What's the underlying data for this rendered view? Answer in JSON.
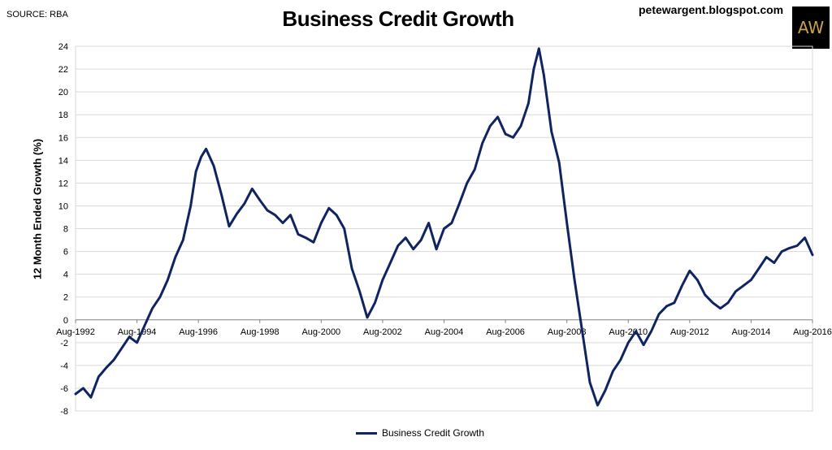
{
  "source": "SOURCE: RBA",
  "blog": "petewargent.blogspot.com",
  "logo_text": "AW",
  "colors": {
    "line": "#0f2460",
    "grid": "#d9d9d9",
    "axis": "#808080"
  },
  "chart_data": {
    "type": "line",
    "title": "Business Credit Growth",
    "ylabel": "12 Month Ended Growth (%)",
    "xlabel": "",
    "ylim": [
      -8,
      24
    ],
    "yticks": [
      24,
      22,
      20,
      18,
      16,
      14,
      12,
      10,
      8,
      6,
      4,
      2,
      0,
      -2,
      -4,
      -6,
      -8
    ],
    "xticks": [
      "Aug-1992",
      "Aug-1994",
      "Aug-1996",
      "Aug-1998",
      "Aug-2000",
      "Aug-2002",
      "Aug-2004",
      "Aug-2006",
      "Aug-2008",
      "Aug-2010",
      "Aug-2012",
      "Aug-2014",
      "Aug-2016"
    ],
    "grid": "horizontal",
    "legend_position": "bottom",
    "series": [
      {
        "name": "Business Credit Growth",
        "x": [
          1992.58,
          1992.83,
          1993.08,
          1993.33,
          1993.58,
          1993.83,
          1994.08,
          1994.33,
          1994.58,
          1994.83,
          1995.08,
          1995.33,
          1995.58,
          1995.83,
          1996.08,
          1996.33,
          1996.5,
          1996.67,
          1996.83,
          1997.08,
          1997.33,
          1997.58,
          1997.83,
          1998.08,
          1998.33,
          1998.58,
          1998.83,
          1999.08,
          1999.33,
          1999.58,
          1999.83,
          2000.08,
          2000.33,
          2000.58,
          2000.83,
          2001.08,
          2001.33,
          2001.58,
          2001.83,
          2002.08,
          2002.33,
          2002.58,
          2002.83,
          2003.08,
          2003.33,
          2003.58,
          2003.83,
          2004.08,
          2004.33,
          2004.58,
          2004.83,
          2005.08,
          2005.33,
          2005.58,
          2005.83,
          2006.08,
          2006.33,
          2006.58,
          2006.83,
          2007.08,
          2007.33,
          2007.5,
          2007.67,
          2007.83,
          2008.08,
          2008.33,
          2008.58,
          2008.83,
          2009.08,
          2009.33,
          2009.58,
          2009.83,
          2010.08,
          2010.33,
          2010.58,
          2010.83,
          2011.08,
          2011.33,
          2011.58,
          2011.83,
          2012.08,
          2012.33,
          2012.58,
          2012.83,
          2013.08,
          2013.33,
          2013.58,
          2013.83,
          2014.08,
          2014.33,
          2014.58,
          2014.83,
          2015.08,
          2015.33,
          2015.58,
          2015.83,
          2016.08,
          2016.33,
          2016.58
        ],
        "values": [
          -6.5,
          -6.0,
          -6.8,
          -5.0,
          -4.2,
          -3.5,
          -2.5,
          -1.5,
          -2.0,
          -0.5,
          1.0,
          2.0,
          3.5,
          5.5,
          7.0,
          10.0,
          13.0,
          14.3,
          15.0,
          13.5,
          11.0,
          8.2,
          9.3,
          10.2,
          11.5,
          10.5,
          9.6,
          9.2,
          8.5,
          9.2,
          7.5,
          7.2,
          6.8,
          8.5,
          9.8,
          9.2,
          8.0,
          4.5,
          2.5,
          0.2,
          1.5,
          3.5,
          5.0,
          6.5,
          7.2,
          6.2,
          7.0,
          8.5,
          6.2,
          8.0,
          8.5,
          10.2,
          12.0,
          13.2,
          15.5,
          17.0,
          17.8,
          16.3,
          16.0,
          17.0,
          19.0,
          22.0,
          23.8,
          21.5,
          16.5,
          13.8,
          8.5,
          3.5,
          -1.0,
          -5.5,
          -7.5,
          -6.2,
          -4.5,
          -3.5,
          -2.0,
          -1.0,
          -2.2,
          -1.0,
          0.5,
          1.2,
          1.5,
          3.0,
          4.3,
          3.5,
          2.2,
          1.5,
          1.0,
          1.5,
          2.5,
          3.0,
          3.5,
          4.5,
          5.5,
          5.0,
          6.0,
          6.3,
          6.5,
          7.2,
          5.7
        ]
      }
    ]
  }
}
